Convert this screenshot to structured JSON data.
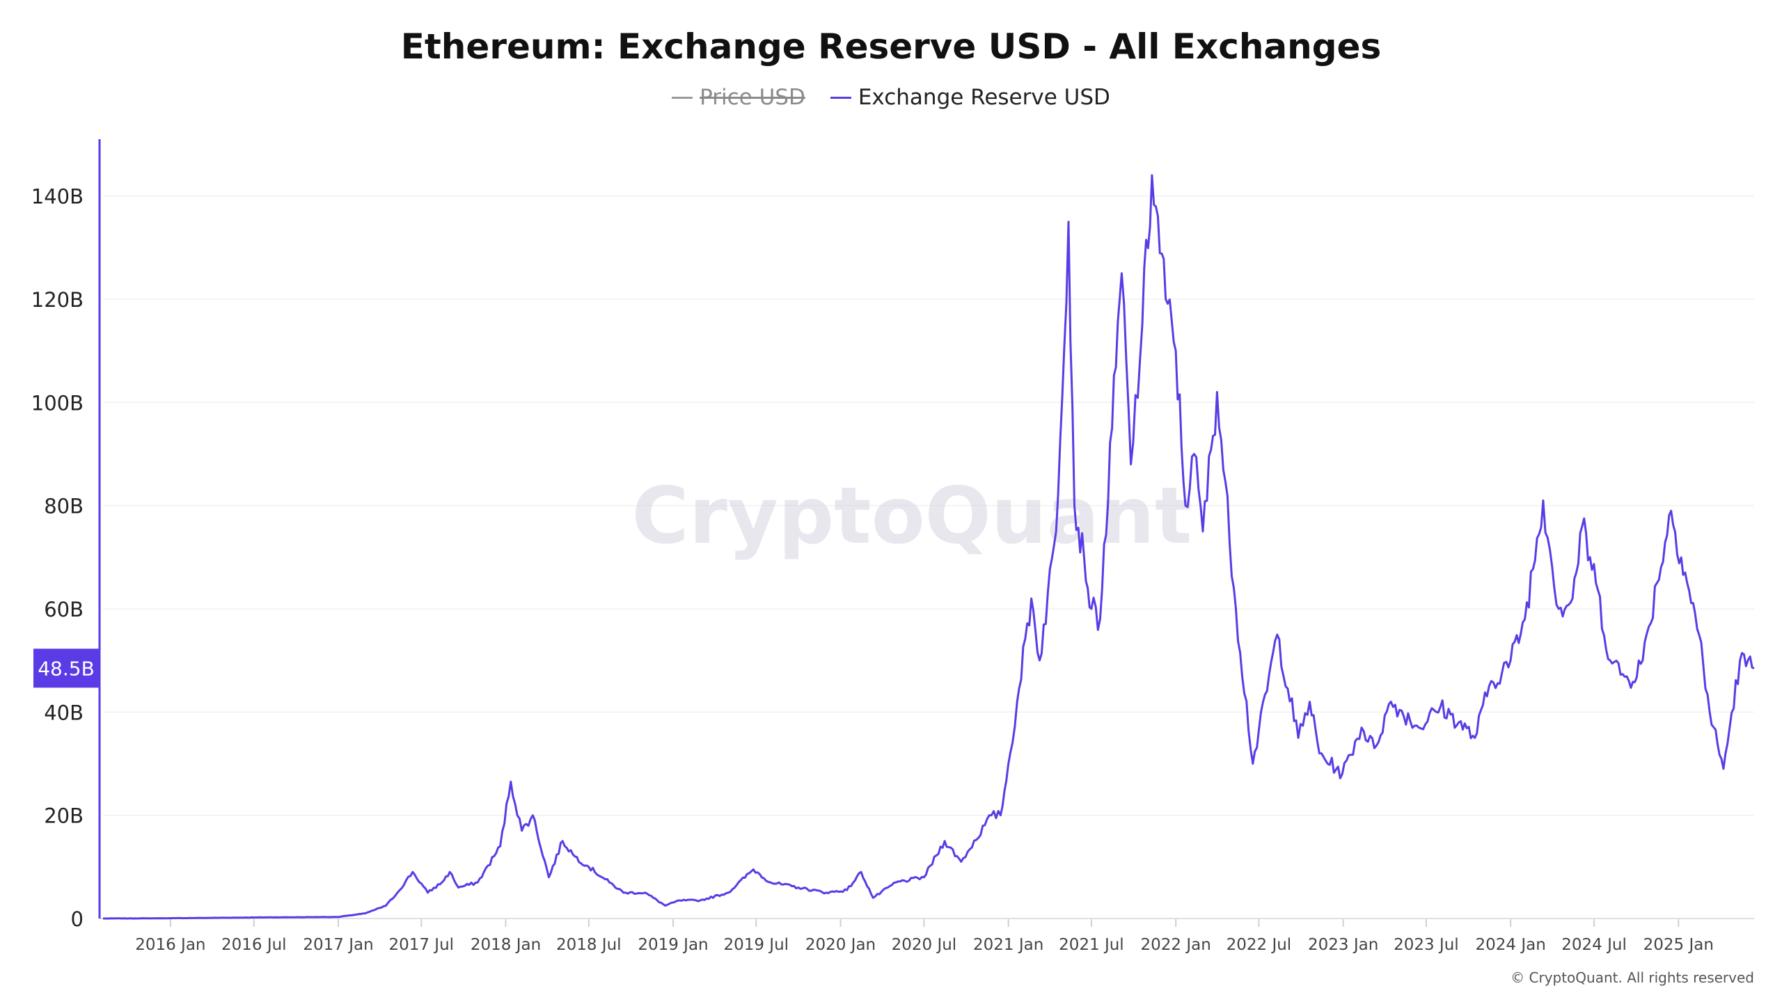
{
  "chart_data": {
    "type": "line",
    "title": "Ethereum: Exchange Reserve USD - All Exchanges",
    "watermark": "CryptoQuant",
    "legend": [
      {
        "name": "Price USD",
        "color": "#9a9a9a",
        "hidden": true
      },
      {
        "name": "Exchange Reserve USD",
        "color": "#5a3be6",
        "hidden": false
      }
    ],
    "y_ticks": [
      "0",
      "20B",
      "40B",
      "60B",
      "80B",
      "100B",
      "120B",
      "140B"
    ],
    "y_tick_values": [
      0,
      20,
      40,
      60,
      80,
      100,
      120,
      140
    ],
    "ylim": [
      0,
      151
    ],
    "y_unit": "B USD",
    "x_ticks": [
      "2016 Jan",
      "2016 Jul",
      "2017 Jan",
      "2017 Jul",
      "2018 Jan",
      "2018 Jul",
      "2019 Jan",
      "2019 Jul",
      "2020 Jan",
      "2020 Jul",
      "2021 Jan",
      "2021 Jul",
      "2022 Jan",
      "2022 Jul",
      "2023 Jan",
      "2023 Jul",
      "2024 Jan",
      "2024 Jul",
      "2025 Jan"
    ],
    "x_tick_dates": [
      "2016-01-01",
      "2016-07-01",
      "2017-01-01",
      "2017-07-01",
      "2018-01-01",
      "2018-07-01",
      "2019-01-01",
      "2019-07-01",
      "2020-01-01",
      "2020-07-01",
      "2021-01-01",
      "2021-07-01",
      "2022-01-01",
      "2022-07-01",
      "2023-01-01",
      "2023-07-01",
      "2024-01-01",
      "2024-07-01",
      "2025-01-01"
    ],
    "xlim": [
      "2015-08-07",
      "2025-06-15"
    ],
    "grid": true,
    "legend_position": "top-center",
    "current_value_label": "48.5B",
    "current_value": 48.5,
    "series": [
      {
        "name": "Exchange Reserve USD",
        "color": "#5a3be6",
        "points": [
          [
            "2015-08-07",
            0.0
          ],
          [
            "2016-01-01",
            0.05
          ],
          [
            "2016-07-01",
            0.2
          ],
          [
            "2017-01-01",
            0.3
          ],
          [
            "2017-03-01",
            1.0
          ],
          [
            "2017-04-15",
            2.5
          ],
          [
            "2017-05-10",
            5.0
          ],
          [
            "2017-06-12",
            9.0
          ],
          [
            "2017-07-15",
            5.0
          ],
          [
            "2017-08-15",
            7.0
          ],
          [
            "2017-09-01",
            9.0
          ],
          [
            "2017-09-20",
            6.0
          ],
          [
            "2017-11-01",
            7.0
          ],
          [
            "2017-12-20",
            14.0
          ],
          [
            "2018-01-12",
            26.5
          ],
          [
            "2018-02-05",
            17.0
          ],
          [
            "2018-03-01",
            20.0
          ],
          [
            "2018-04-05",
            8.0
          ],
          [
            "2018-05-05",
            15.0
          ],
          [
            "2018-06-01",
            12.0
          ],
          [
            "2018-07-01",
            10.0
          ],
          [
            "2018-08-15",
            7.0
          ],
          [
            "2018-09-15",
            5.0
          ],
          [
            "2018-11-01",
            5.0
          ],
          [
            "2018-12-15",
            2.5
          ],
          [
            "2019-01-15",
            3.5
          ],
          [
            "2019-03-01",
            3.5
          ],
          [
            "2019-05-01",
            5.0
          ],
          [
            "2019-06-25",
            9.5
          ],
          [
            "2019-08-01",
            7.0
          ],
          [
            "2019-10-01",
            6.0
          ],
          [
            "2019-12-01",
            5.0
          ],
          [
            "2020-01-15",
            5.5
          ],
          [
            "2020-02-15",
            9.0
          ],
          [
            "2020-03-12",
            4.0
          ],
          [
            "2020-05-01",
            7.0
          ],
          [
            "2020-07-01",
            8.0
          ],
          [
            "2020-08-15",
            15.0
          ],
          [
            "2020-09-20",
            11.0
          ],
          [
            "2020-11-25",
            20.0
          ],
          [
            "2020-12-15",
            20.0
          ],
          [
            "2021-01-05",
            32.0
          ],
          [
            "2021-01-20",
            42.0
          ],
          [
            "2021-02-20",
            62.0
          ],
          [
            "2021-03-10",
            50.0
          ],
          [
            "2021-04-15",
            75.0
          ],
          [
            "2021-05-12",
            135.0
          ],
          [
            "2021-05-25",
            80.0
          ],
          [
            "2021-06-15",
            70.0
          ],
          [
            "2021-07-01",
            60.0
          ],
          [
            "2021-07-20",
            58.0
          ],
          [
            "2021-08-15",
            95.0
          ],
          [
            "2021-09-05",
            125.0
          ],
          [
            "2021-09-25",
            88.0
          ],
          [
            "2021-10-20",
            115.0
          ],
          [
            "2021-11-10",
            144.0
          ],
          [
            "2021-12-10",
            120.0
          ],
          [
            "2022-01-01",
            110.0
          ],
          [
            "2022-01-22",
            80.0
          ],
          [
            "2022-02-10",
            90.0
          ],
          [
            "2022-03-01",
            75.0
          ],
          [
            "2022-04-01",
            102.0
          ],
          [
            "2022-05-12",
            60.0
          ],
          [
            "2022-06-18",
            30.0
          ],
          [
            "2022-08-10",
            55.0
          ],
          [
            "2022-09-25",
            35.0
          ],
          [
            "2022-10-20",
            42.0
          ],
          [
            "2022-11-10",
            32.0
          ],
          [
            "2022-12-30",
            28.0
          ],
          [
            "2023-02-10",
            37.0
          ],
          [
            "2023-03-10",
            33.0
          ],
          [
            "2023-04-15",
            42.0
          ],
          [
            "2023-06-15",
            37.0
          ],
          [
            "2023-08-01",
            41.0
          ],
          [
            "2023-09-10",
            38.0
          ],
          [
            "2023-10-15",
            35.0
          ],
          [
            "2023-11-15",
            45.0
          ],
          [
            "2024-01-01",
            50.0
          ],
          [
            "2024-02-01",
            58.0
          ],
          [
            "2024-03-12",
            81.0
          ],
          [
            "2024-04-15",
            60.0
          ],
          [
            "2024-05-15",
            62.0
          ],
          [
            "2024-06-05",
            76.0
          ],
          [
            "2024-07-05",
            65.0
          ],
          [
            "2024-08-05",
            50.0
          ],
          [
            "2024-09-15",
            46.0
          ],
          [
            "2024-10-15",
            50.0
          ],
          [
            "2024-11-15",
            65.0
          ],
          [
            "2024-12-16",
            79.0
          ],
          [
            "2025-01-20",
            65.0
          ],
          [
            "2025-02-15",
            55.0
          ],
          [
            "2025-03-10",
            40.0
          ],
          [
            "2025-04-09",
            29.0
          ],
          [
            "2025-05-15",
            50.0
          ],
          [
            "2025-06-15",
            48.5
          ]
        ]
      }
    ]
  },
  "footer": {
    "copyright": "© CryptoQuant. All rights reserved"
  }
}
